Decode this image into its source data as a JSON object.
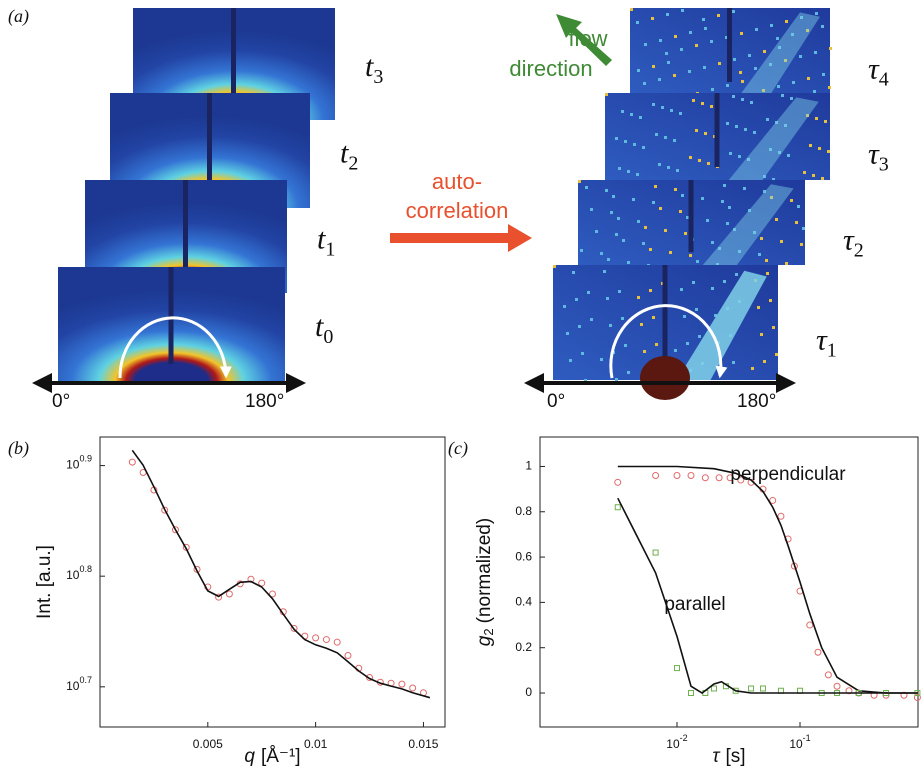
{
  "panel_a": {
    "label": "(a)",
    "left_frames": [
      {
        "symbol": "t",
        "sub": "3"
      },
      {
        "symbol": "t",
        "sub": "2"
      },
      {
        "symbol": "t",
        "sub": "1"
      },
      {
        "symbol": "t",
        "sub": "0"
      }
    ],
    "right_frames": [
      {
        "symbol": "τ",
        "sub": "4"
      },
      {
        "symbol": "τ",
        "sub": "3"
      },
      {
        "symbol": "τ",
        "sub": "2"
      },
      {
        "symbol": "τ",
        "sub": "1"
      }
    ],
    "angle_start": "0°",
    "angle_end": "180°",
    "process": [
      "auto-",
      "correlation"
    ],
    "flow": [
      "flow",
      "direction"
    ]
  },
  "chart_data": [
    {
      "type": "scatter",
      "panel_label": "(b)",
      "y_label": "Int. [a.u.]",
      "x_label_symbol": "q",
      "x_label_unit": "[Å⁻¹]",
      "log_y": true,
      "xlim": [
        0,
        0.016
      ],
      "ylim": [
        4.61,
        8.43
      ],
      "xticks": [
        0.005,
        0.01,
        0.015
      ],
      "yticks": [
        {
          "value": 5.012,
          "label": "10",
          "exponent": "0.7"
        },
        {
          "value": 6.31,
          "label": "10",
          "exponent": "0.8"
        },
        {
          "value": 7.943,
          "label": "10",
          "exponent": "0.9"
        }
      ],
      "series": [
        {
          "color": "#e06a6a",
          "marker": "circle",
          "x": [
            0.0015,
            0.002,
            0.0025,
            0.003,
            0.0035,
            0.004,
            0.0045,
            0.005,
            0.0055,
            0.006,
            0.0065,
            0.007,
            0.0075,
            0.008,
            0.0085,
            0.009,
            0.0095,
            0.01,
            0.0105,
            0.011,
            0.0115,
            0.012,
            0.0125,
            0.013,
            0.0135,
            0.014,
            0.0145,
            0.015
          ],
          "values": [
            8.0,
            7.83,
            7.55,
            7.24,
            6.95,
            6.7,
            6.4,
            6.17,
            6.04,
            6.08,
            6.21,
            6.27,
            6.22,
            6.08,
            5.86,
            5.66,
            5.57,
            5.55,
            5.53,
            5.5,
            5.35,
            5.21,
            5.11,
            5.06,
            5.05,
            5.04,
            5.0,
            4.95
          ]
        },
        {
          "color": "#111111",
          "marker": null,
          "x": [
            0.0015,
            0.002,
            0.0025,
            0.003,
            0.0035,
            0.004,
            0.0045,
            0.005,
            0.0055,
            0.006,
            0.0065,
            0.007,
            0.0075,
            0.008,
            0.0085,
            0.009,
            0.0095,
            0.01,
            0.0105,
            0.011,
            0.0115,
            0.012,
            0.0125,
            0.013,
            0.0135,
            0.014,
            0.0145,
            0.0153
          ],
          "values": [
            8.2,
            7.95,
            7.6,
            7.25,
            6.95,
            6.68,
            6.38,
            6.12,
            6.05,
            6.14,
            6.23,
            6.24,
            6.17,
            6.02,
            5.83,
            5.65,
            5.53,
            5.47,
            5.43,
            5.38,
            5.28,
            5.18,
            5.1,
            5.05,
            5.02,
            4.99,
            4.95,
            4.9
          ]
        }
      ]
    },
    {
      "type": "scatter",
      "panel_label": "(c)",
      "y_label_symbol": "g",
      "y_label_sub": "2",
      "y_label_unit": "(normalized)",
      "x_label_symbol": "τ",
      "x_label_unit": "[s]",
      "log_x": true,
      "xlim": [
        0.00077,
        0.91
      ],
      "ylim": [
        -0.15,
        1.13
      ],
      "xticks": [
        {
          "value": 0.01,
          "label": "10",
          "exponent": "-2"
        },
        {
          "value": 0.1,
          "label": "10",
          "exponent": "-1"
        }
      ],
      "yticks": [
        0,
        0.2,
        0.4,
        0.6,
        0.8,
        1
      ],
      "annotations": [
        "perpendicular",
        "parallel"
      ],
      "series": [
        {
          "color": "#e06a6a",
          "marker": "circle",
          "x": [
            0.0033,
            0.0067,
            0.01,
            0.013,
            0.017,
            0.022,
            0.027,
            0.033,
            0.04,
            0.05,
            0.06,
            0.07,
            0.08,
            0.09,
            0.1,
            0.12,
            0.14,
            0.17,
            0.2,
            0.25,
            0.3,
            0.4,
            0.5,
            0.7,
            0.9
          ],
          "values": [
            0.93,
            0.96,
            0.96,
            0.96,
            0.95,
            0.95,
            0.95,
            0.94,
            0.93,
            0.9,
            0.85,
            0.78,
            0.68,
            0.56,
            0.45,
            0.3,
            0.18,
            0.08,
            0.03,
            0.01,
            0.0,
            -0.01,
            -0.01,
            -0.01,
            -0.02
          ]
        },
        {
          "color": "#111111",
          "marker": null,
          "x": [
            0.0033,
            0.01,
            0.02,
            0.03,
            0.04,
            0.05,
            0.06,
            0.07,
            0.08,
            0.1,
            0.12,
            0.15,
            0.2,
            0.3,
            0.5,
            0.9
          ],
          "values": [
            1.0,
            1.0,
            0.99,
            0.97,
            0.94,
            0.89,
            0.82,
            0.74,
            0.65,
            0.49,
            0.35,
            0.2,
            0.07,
            0.01,
            0,
            0
          ]
        },
        {
          "color": "#6fb04f",
          "marker": "square",
          "x": [
            0.0033,
            0.0067,
            0.01,
            0.013,
            0.017,
            0.02,
            0.025,
            0.03,
            0.04,
            0.05,
            0.07,
            0.1,
            0.15,
            0.2,
            0.3,
            0.5,
            0.9
          ],
          "values": [
            0.82,
            0.62,
            0.11,
            0.0,
            0.0,
            0.02,
            0.03,
            0.01,
            0.02,
            0.02,
            0.01,
            0.01,
            0.0,
            0.0,
            0.0,
            0.0,
            0.0
          ]
        },
        {
          "color": "#111111",
          "marker": null,
          "x": [
            0.0033,
            0.0067,
            0.01,
            0.013,
            0.016,
            0.02,
            0.023,
            0.03,
            0.04,
            0.06,
            0.1,
            0.2,
            0.5,
            0.9
          ],
          "values": [
            0.86,
            0.53,
            0.25,
            0.03,
            0.0,
            0.04,
            0.05,
            0.01,
            0.0,
            0.0,
            0.0,
            0.0,
            0.0,
            0.0
          ]
        }
      ]
    }
  ]
}
